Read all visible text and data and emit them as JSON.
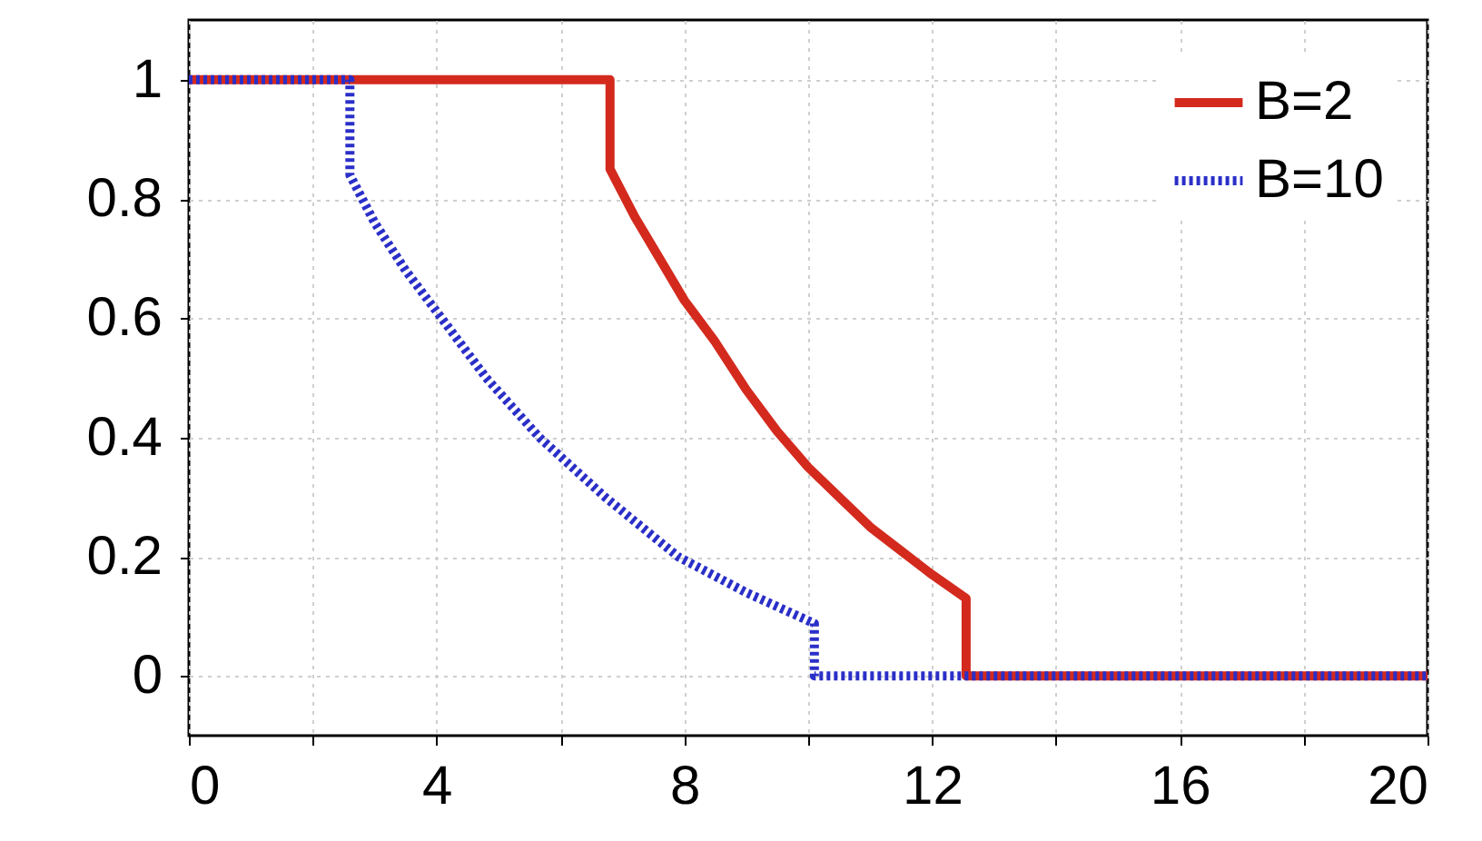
{
  "chart_data": {
    "type": "line",
    "xlim": [
      0,
      20
    ],
    "ylim": [
      -0.1,
      1.1
    ],
    "xticks": [
      0,
      {
        "value": 2,
        "label": null
      },
      4,
      {
        "value": 6,
        "label": null
      },
      8,
      {
        "value": 10,
        "label": null
      },
      12,
      {
        "value": 14,
        "label": null
      },
      16,
      {
        "value": 18,
        "label": null
      },
      20
    ],
    "yticks": [
      0,
      0.2,
      0.4,
      0.6,
      0.8,
      1
    ],
    "grid": true,
    "legend": "top right",
    "series": [
      {
        "name": "B=2",
        "color": "#d42a1e",
        "line_style": "solid",
        "x": [
          0,
          6.8,
          6.8,
          7.2,
          7.6,
          8.0,
          8.5,
          9.0,
          9.5,
          10.0,
          10.5,
          11.0,
          11.5,
          12.0,
          12.55,
          12.55,
          20
        ],
        "values": [
          1,
          1,
          0.85,
          0.77,
          0.7,
          0.63,
          0.56,
          0.48,
          0.41,
          0.35,
          0.3,
          0.25,
          0.21,
          0.17,
          0.13,
          0,
          0
        ]
      },
      {
        "name": "B=10",
        "color": "#2a2fc8",
        "line_style": "dotted",
        "x": [
          0,
          2.6,
          2.6,
          3.0,
          3.5,
          4.08,
          4.8,
          5.66,
          6.72,
          7.9,
          9.0,
          10.1,
          10.1,
          20
        ],
        "values": [
          1,
          1,
          0.84,
          0.76,
          0.68,
          0.6,
          0.5,
          0.4,
          0.3,
          0.2,
          0.14,
          0.088,
          0,
          0
        ]
      }
    ]
  }
}
